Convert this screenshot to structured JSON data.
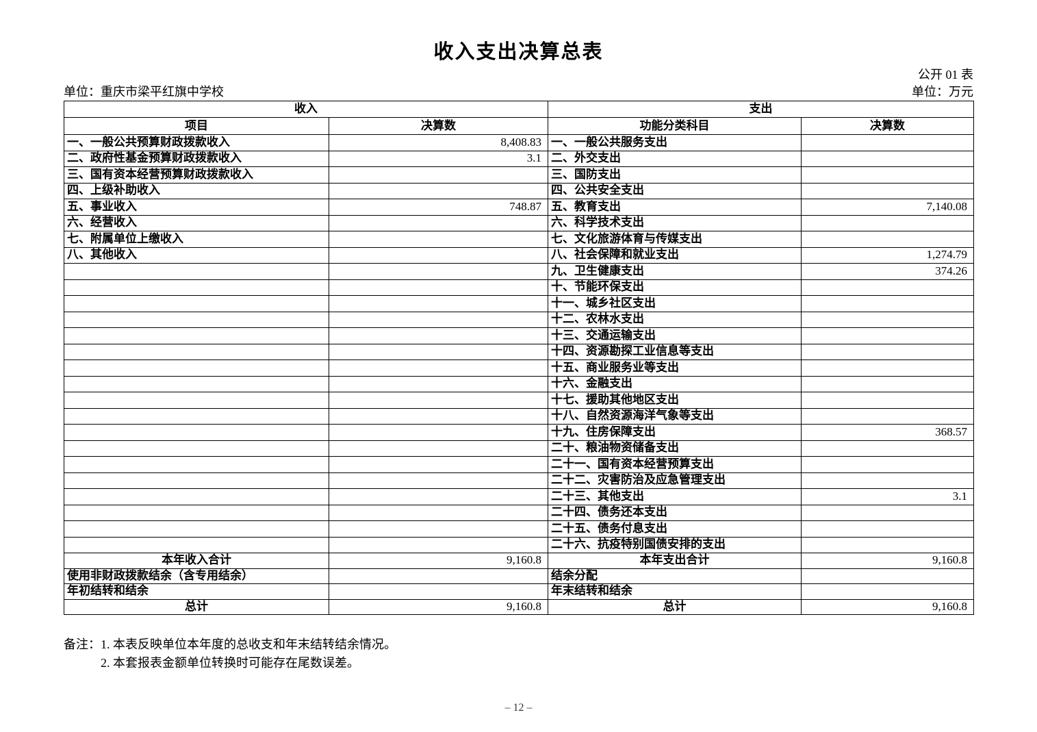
{
  "page": {
    "title": "收入支出决算总表",
    "form_label": "公开 01 表",
    "unit_name_label": "单位：重庆市梁平红旗中学校",
    "unit_money_label": "单位：万元",
    "page_number": "– 12 –"
  },
  "table": {
    "income_header": "收入",
    "expense_header": "支出",
    "col_headers": {
      "income_item": "项目",
      "income_value": "决算数",
      "expense_item": "功能分类科目",
      "expense_value": "决算数"
    },
    "rows": [
      {
        "income_label": "一、一般公共预算财政拨款收入",
        "income_value": "8,408.83",
        "expense_label": "一、一般公共服务支出",
        "expense_value": ""
      },
      {
        "income_label": "二、政府性基金预算财政拨款收入",
        "income_value": "3.1",
        "expense_label": "二、外交支出",
        "expense_value": ""
      },
      {
        "income_label": "三、国有资本经营预算财政拨款收入",
        "income_value": "",
        "expense_label": "三、国防支出",
        "expense_value": ""
      },
      {
        "income_label": "四、上级补助收入",
        "income_value": "",
        "expense_label": "四、公共安全支出",
        "expense_value": ""
      },
      {
        "income_label": "五、事业收入",
        "income_value": "748.87",
        "expense_label": "五、教育支出",
        "expense_value": "7,140.08"
      },
      {
        "income_label": "六、经营收入",
        "income_value": "",
        "expense_label": "六、科学技术支出",
        "expense_value": ""
      },
      {
        "income_label": "七、附属单位上缴收入",
        "income_value": "",
        "expense_label": "七、文化旅游体育与传媒支出",
        "expense_value": ""
      },
      {
        "income_label": "八、其他收入",
        "income_value": "",
        "expense_label": "八、社会保障和就业支出",
        "expense_value": "1,274.79"
      },
      {
        "income_label": "",
        "income_value": "",
        "expense_label": "九、卫生健康支出",
        "expense_value": "374.26"
      },
      {
        "income_label": "",
        "income_value": "",
        "expense_label": "十、节能环保支出",
        "expense_value": ""
      },
      {
        "income_label": "",
        "income_value": "",
        "expense_label": "十一、城乡社区支出",
        "expense_value": ""
      },
      {
        "income_label": "",
        "income_value": "",
        "expense_label": "十二、农林水支出",
        "expense_value": ""
      },
      {
        "income_label": "",
        "income_value": "",
        "expense_label": "十三、交通运输支出",
        "expense_value": ""
      },
      {
        "income_label": "",
        "income_value": "",
        "expense_label": "十四、资源勘探工业信息等支出",
        "expense_value": ""
      },
      {
        "income_label": "",
        "income_value": "",
        "expense_label": "十五、商业服务业等支出",
        "expense_value": ""
      },
      {
        "income_label": "",
        "income_value": "",
        "expense_label": "十六、金融支出",
        "expense_value": ""
      },
      {
        "income_label": "",
        "income_value": "",
        "expense_label": "十七、援助其他地区支出",
        "expense_value": ""
      },
      {
        "income_label": "",
        "income_value": "",
        "expense_label": "十八、自然资源海洋气象等支出",
        "expense_value": ""
      },
      {
        "income_label": "",
        "income_value": "",
        "expense_label": "十九、住房保障支出",
        "expense_value": "368.57"
      },
      {
        "income_label": "",
        "income_value": "",
        "expense_label": "二十、粮油物资储备支出",
        "expense_value": ""
      },
      {
        "income_label": "",
        "income_value": "",
        "expense_label": "二十一、国有资本经营预算支出",
        "expense_value": ""
      },
      {
        "income_label": "",
        "income_value": "",
        "expense_label": "二十二、灾害防治及应急管理支出",
        "expense_value": ""
      },
      {
        "income_label": "",
        "income_value": "",
        "expense_label": "二十三、其他支出",
        "expense_value": "3.1"
      },
      {
        "income_label": "",
        "income_value": "",
        "expense_label": "二十四、债务还本支出",
        "expense_value": ""
      },
      {
        "income_label": "",
        "income_value": "",
        "expense_label": "二十五、债务付息支出",
        "expense_value": ""
      },
      {
        "income_label": "",
        "income_value": "",
        "expense_label": "二十六、抗疫特别国债安排的支出",
        "expense_value": ""
      }
    ],
    "footer_rows": [
      {
        "type": "summary",
        "income_label": "本年收入合计",
        "income_value": "9,160.8",
        "expense_label": "本年支出合计",
        "expense_value": "9,160.8"
      },
      {
        "type": "normal",
        "income_label": "使用非财政拨款结余（含专用结余）",
        "income_value": "",
        "expense_label": "结余分配",
        "expense_value": ""
      },
      {
        "type": "normal",
        "income_label": "年初结转和结余",
        "income_value": "",
        "expense_label": "年末结转和结余",
        "expense_value": ""
      },
      {
        "type": "summary",
        "income_label": "总计",
        "income_value": "9,160.8",
        "expense_label": "总计",
        "expense_value": "9,160.8"
      }
    ]
  },
  "notes": {
    "label": "备注：",
    "lines": [
      "1. 本表反映单位本年度的总收支和年末结转结余情况。",
      "2. 本套报表金额单位转换时可能存在尾数误差。"
    ]
  }
}
